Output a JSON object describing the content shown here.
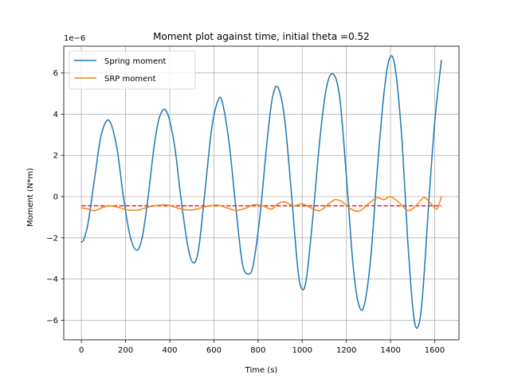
{
  "chart_data": {
    "type": "line",
    "title": "Moment plot against time, initial theta =0.52",
    "xlabel": "Time (s)",
    "ylabel": "Moment (N*m)",
    "y_scale_label": "1e−6",
    "xlim": [
      -80,
      1710
    ],
    "ylim": [
      -6.95,
      7.3
    ],
    "xticks": [
      0,
      200,
      400,
      600,
      800,
      1000,
      1200,
      1400,
      1600
    ],
    "xtick_labels": [
      "0",
      "200",
      "400",
      "600",
      "800",
      "1000",
      "1200",
      "1400",
      "1600"
    ],
    "yticks": [
      -6,
      -4,
      -2,
      0,
      2,
      4,
      6
    ],
    "ytick_labels": [
      "−6",
      "−4",
      "−2",
      "0",
      "2",
      "4",
      "6"
    ],
    "grid": true,
    "legend_position": "upper-left",
    "series": [
      {
        "name": "Spring moment",
        "color": "#1f77b4",
        "x": [
          0,
          10,
          30,
          60,
          90,
          125,
          160,
          190,
          220,
          250,
          275,
          300,
          330,
          355,
          385,
          420,
          450,
          480,
          505,
          530,
          560,
          590,
          620,
          640,
          670,
          700,
          730,
          760,
          780,
          810,
          840,
          865,
          890,
          920,
          950,
          980,
          1000,
          1020,
          1050,
          1080,
          1110,
          1140,
          1170,
          1200,
          1230,
          1255,
          1280,
          1310,
          1340,
          1370,
          1395,
          1420,
          1450,
          1480,
          1505,
          1525,
          1545,
          1575,
          1600,
          1630
        ],
        "values": [
          -2.2,
          -2.1,
          -1.3,
          0.9,
          3.0,
          3.7,
          2.4,
          0.0,
          -1.9,
          -2.6,
          -2.0,
          -0.2,
          2.5,
          3.9,
          4.15,
          2.6,
          0.0,
          -2.3,
          -3.2,
          -2.6,
          0.3,
          3.3,
          4.7,
          4.5,
          2.5,
          -0.6,
          -3.3,
          -3.75,
          -3.2,
          -0.8,
          2.6,
          4.8,
          5.3,
          3.8,
          0.3,
          -3.5,
          -4.5,
          -3.9,
          -0.8,
          2.8,
          5.3,
          5.95,
          4.8,
          1.0,
          -3.3,
          -5.2,
          -5.3,
          -3.0,
          1.3,
          5.0,
          6.7,
          6.3,
          3.0,
          -2.5,
          -5.8,
          -6.3,
          -4.8,
          0.0,
          3.6,
          6.6
        ]
      },
      {
        "name": "SRP moment",
        "color": "#ff7f0e",
        "x": [
          0,
          30,
          60,
          90,
          125,
          160,
          200,
          250,
          290,
          330,
          380,
          420,
          460,
          500,
          540,
          580,
          620,
          660,
          700,
          740,
          780,
          820,
          860,
          890,
          920,
          960,
          1000,
          1040,
          1080,
          1120,
          1150,
          1180,
          1220,
          1260,
          1300,
          1340,
          1370,
          1400,
          1440,
          1480,
          1520,
          1550,
          1580,
          1610,
          1630
        ],
        "values": [
          -0.55,
          -0.6,
          -0.68,
          -0.55,
          -0.45,
          -0.5,
          -0.62,
          -0.66,
          -0.55,
          -0.45,
          -0.4,
          -0.5,
          -0.62,
          -0.65,
          -0.55,
          -0.45,
          -0.42,
          -0.55,
          -0.67,
          -0.58,
          -0.4,
          -0.45,
          -0.6,
          -0.35,
          -0.25,
          -0.45,
          -0.35,
          -0.55,
          -0.68,
          -0.35,
          -0.15,
          -0.25,
          -0.6,
          -0.7,
          -0.35,
          -0.05,
          -0.15,
          0.0,
          -0.3,
          -0.68,
          -0.4,
          -0.05,
          -0.3,
          -0.6,
          0.0
        ]
      }
    ],
    "reference_line": {
      "y": -0.45,
      "x_range": [
        0,
        1630
      ],
      "color": "#d62728",
      "style": "dashed"
    }
  }
}
